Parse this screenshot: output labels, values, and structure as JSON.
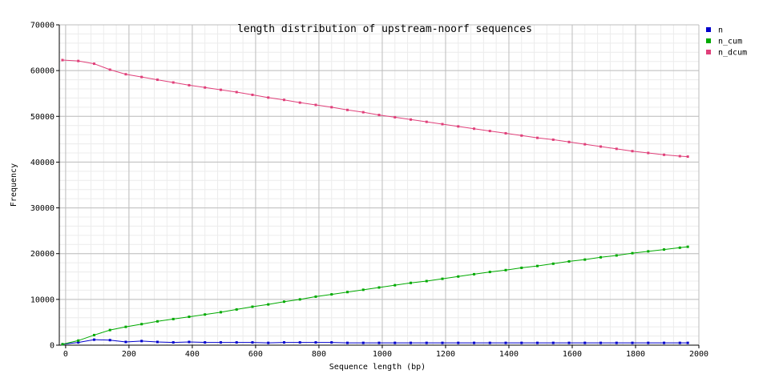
{
  "chart_data": {
    "type": "line",
    "title": "length distribution of upstream-noorf sequences",
    "xlabel": "Sequence length (bp)",
    "ylabel": "Frequency",
    "xlim": [
      -20,
      2000
    ],
    "ylim": [
      0,
      70000
    ],
    "x_ticks": [
      0,
      200,
      400,
      600,
      800,
      1000,
      1200,
      1400,
      1600,
      1800,
      2000
    ],
    "y_ticks": [
      0,
      10000,
      20000,
      30000,
      40000,
      50000,
      60000,
      70000
    ],
    "grid": true,
    "legend_position": "top-right",
    "x": [
      -10,
      40,
      90,
      140,
      190,
      240,
      290,
      340,
      390,
      440,
      490,
      540,
      590,
      640,
      690,
      740,
      790,
      840,
      890,
      940,
      990,
      1040,
      1090,
      1140,
      1190,
      1240,
      1290,
      1340,
      1390,
      1440,
      1490,
      1540,
      1590,
      1640,
      1690,
      1740,
      1790,
      1840,
      1890,
      1940,
      1965
    ],
    "series": [
      {
        "name": "n",
        "color": "#0000cc",
        "values": [
          200,
          600,
          1200,
          1100,
          700,
          900,
          700,
          600,
          700,
          600,
          600,
          600,
          600,
          500,
          600,
          600,
          600,
          600,
          500,
          500,
          500,
          500,
          500,
          500,
          500,
          500,
          500,
          500,
          500,
          500,
          500,
          500,
          500,
          500,
          500,
          500,
          500,
          500,
          500,
          500,
          500
        ]
      },
      {
        "name": "n_cum",
        "color": "#00aa00",
        "values": [
          200,
          1000,
          2200,
          3300,
          4000,
          4600,
          5200,
          5700,
          6200,
          6700,
          7200,
          7800,
          8400,
          8900,
          9500,
          10000,
          10600,
          11100,
          11600,
          12100,
          12600,
          13100,
          13600,
          14000,
          14500,
          15000,
          15500,
          16000,
          16400,
          16900,
          17300,
          17800,
          18300,
          18700,
          19200,
          19600,
          20100,
          20500,
          20900,
          21300,
          21500
        ]
      },
      {
        "name": "n_dcum",
        "color": "#e0407a",
        "values": [
          62300,
          62100,
          61500,
          60200,
          59200,
          58600,
          58000,
          57400,
          56800,
          56300,
          55800,
          55300,
          54700,
          54100,
          53600,
          53000,
          52500,
          52000,
          51400,
          50900,
          50300,
          49800,
          49300,
          48800,
          48300,
          47800,
          47300,
          46800,
          46300,
          45800,
          45300,
          44900,
          44400,
          43900,
          43400,
          42900,
          42400,
          42000,
          41600,
          41300,
          41200
        ]
      }
    ]
  }
}
